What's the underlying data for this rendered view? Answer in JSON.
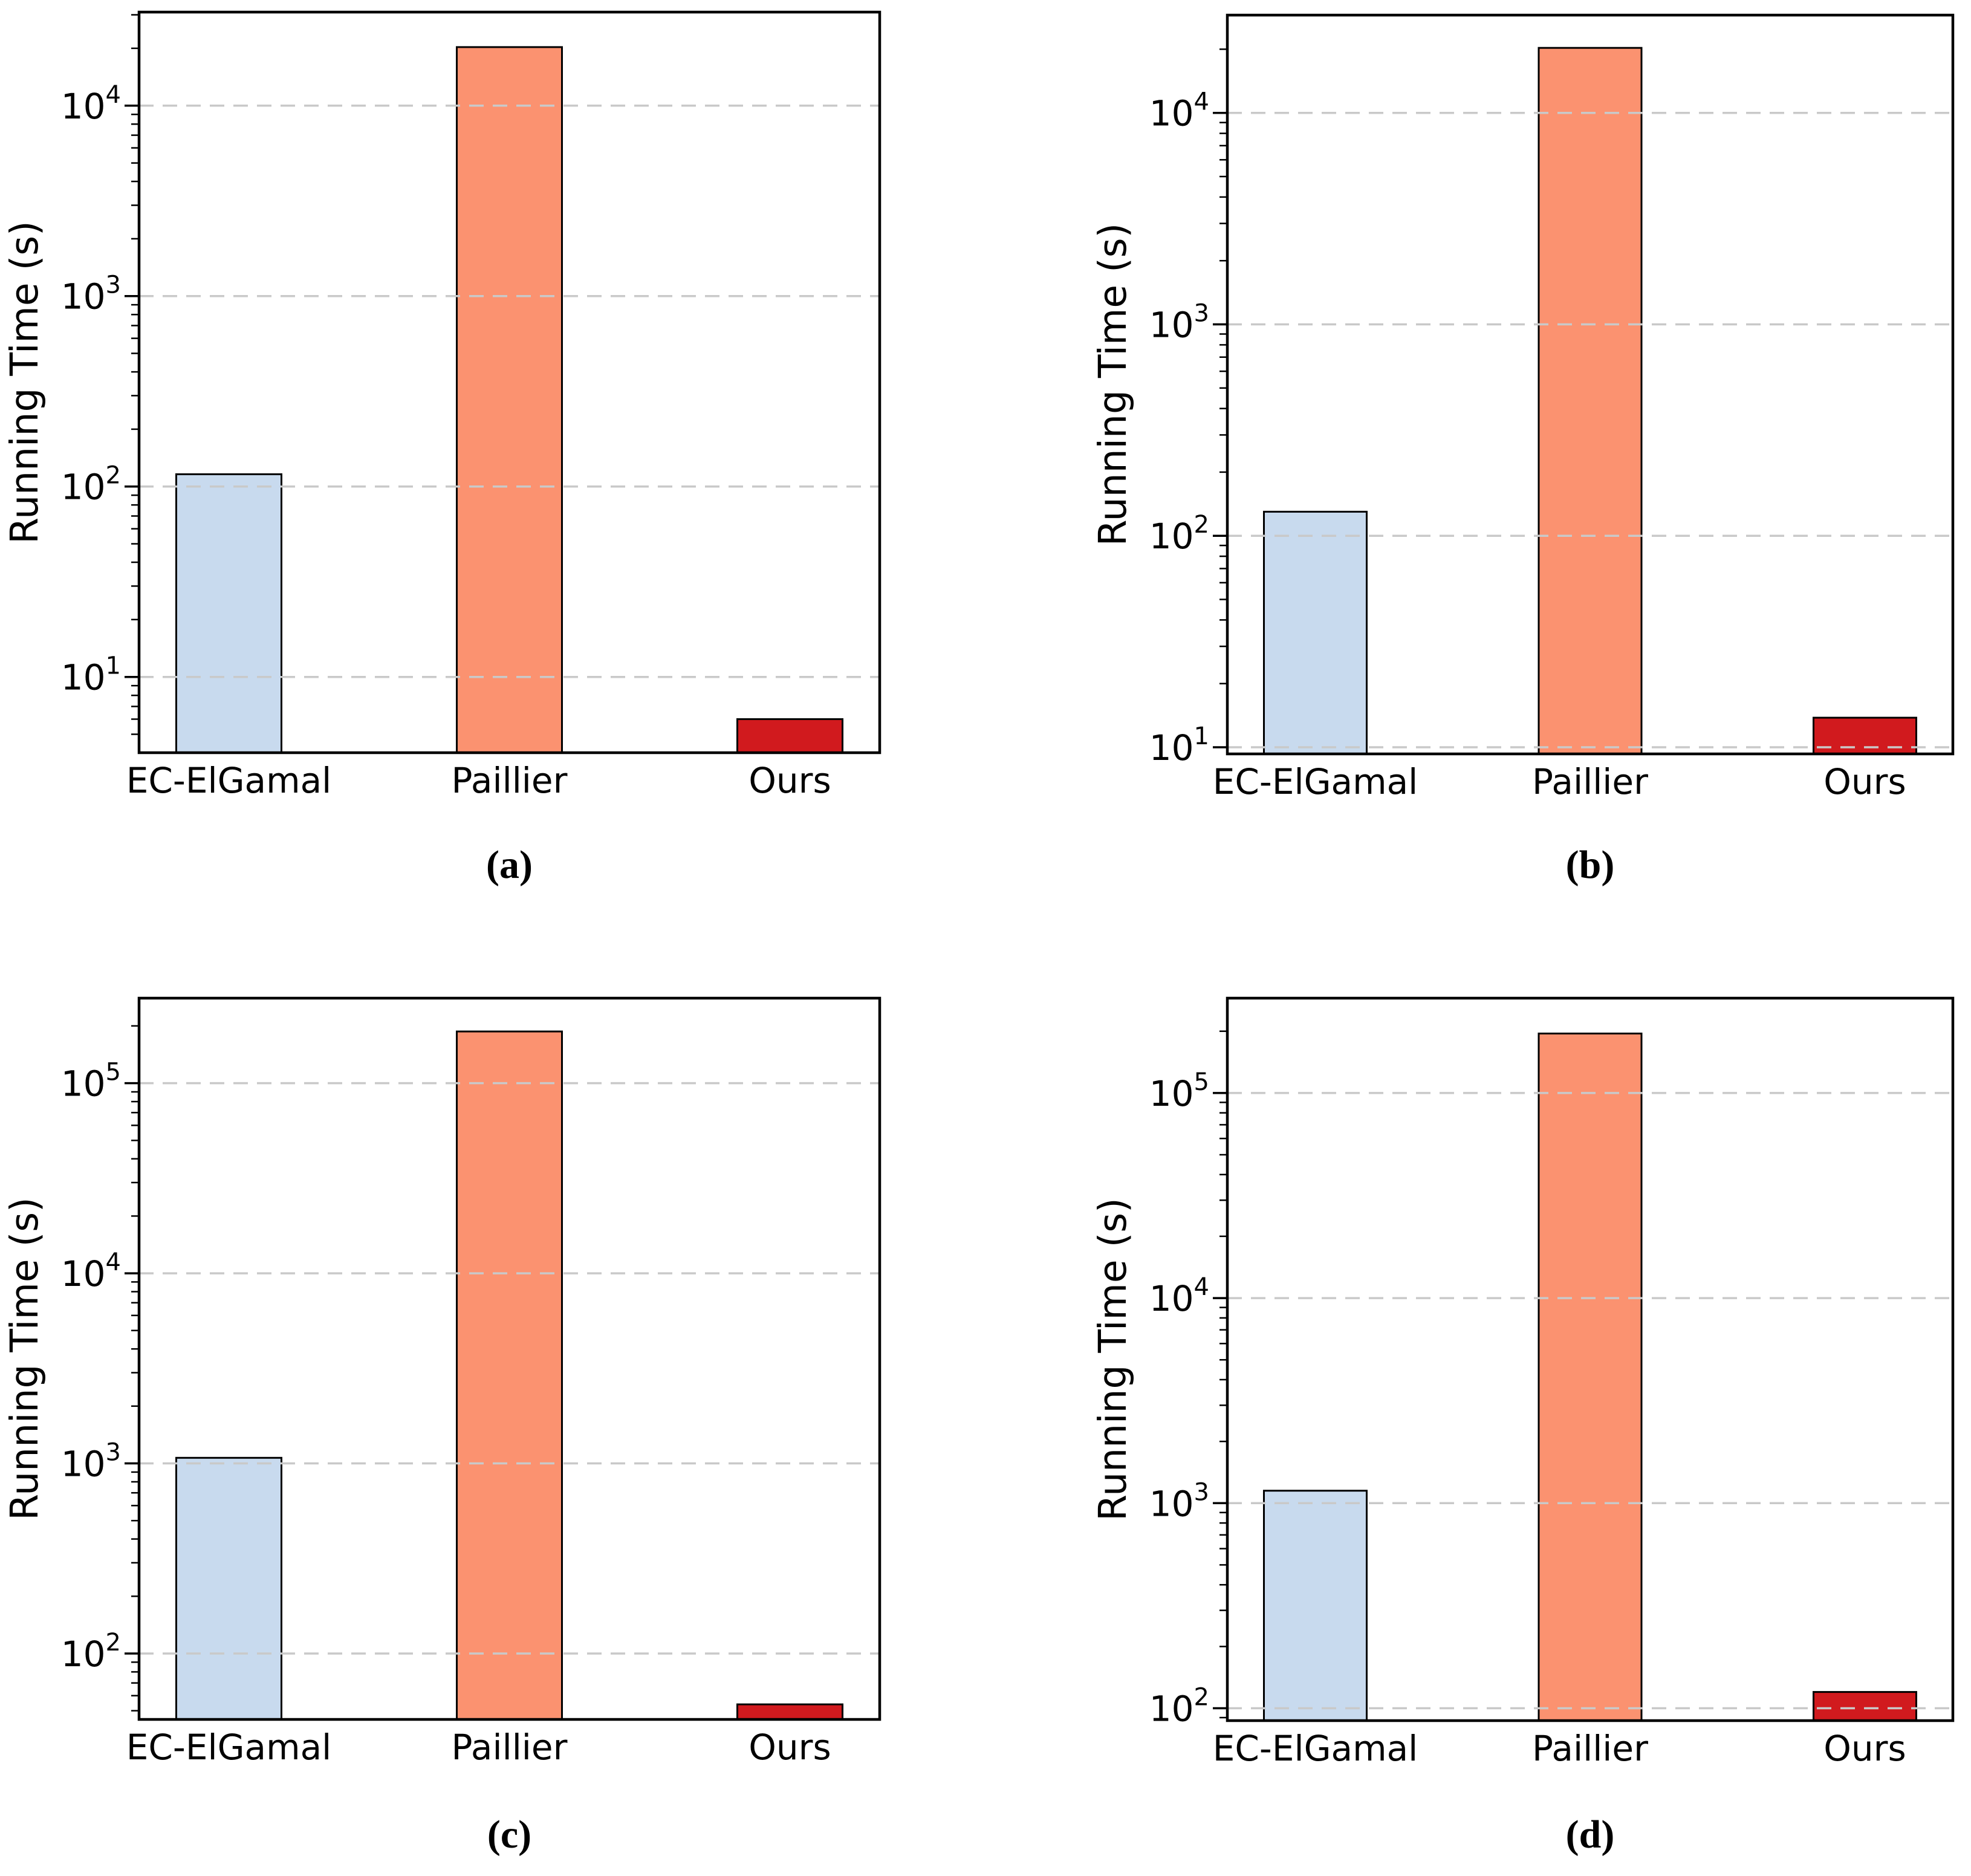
{
  "page": {
    "background": "#ffffff"
  },
  "chart_data": [
    {
      "type": "bar",
      "caption": "(a)",
      "ylabel": "Running Time (s)",
      "yscale": "log",
      "categories": [
        "EC-ElGamal",
        "Paillier",
        "Ours"
      ],
      "values": [
        116,
        20300,
        6
      ],
      "bar_colors": [
        "#c8daee",
        "#fb9270",
        "#d11a1e"
      ],
      "bar_edge_color": "#000000",
      "ylim": [
        4,
        31000
      ],
      "ytick_label_base": "10",
      "ytick_exponents": [
        1,
        2,
        3,
        4
      ],
      "grid": {
        "axis": "y",
        "style": "dashed",
        "color": "#c9c9c9"
      },
      "legend": "none"
    },
    {
      "type": "bar",
      "caption": "(b)",
      "ylabel": "Running Time (s)",
      "yscale": "log",
      "categories": [
        "EC-ElGamal",
        "Paillier",
        "Ours"
      ],
      "values": [
        130,
        20300,
        13.8
      ],
      "bar_colors": [
        "#c8daee",
        "#fb9270",
        "#d11a1e"
      ],
      "bar_edge_color": "#000000",
      "ylim": [
        9.3,
        29000
      ],
      "ytick_label_base": "10",
      "ytick_exponents": [
        1,
        2,
        3,
        4
      ],
      "grid": {
        "axis": "y",
        "style": "dashed",
        "color": "#c9c9c9"
      },
      "legend": "none"
    },
    {
      "type": "bar",
      "caption": "(c)",
      "ylabel": "Running Time (s)",
      "yscale": "log",
      "categories": [
        "EC-ElGamal",
        "Paillier",
        "Ours"
      ],
      "values": [
        1070,
        187000,
        54
      ],
      "bar_colors": [
        "#c8daee",
        "#fb9270",
        "#d11a1e"
      ],
      "bar_edge_color": "#000000",
      "ylim": [
        45,
        280000
      ],
      "ytick_label_base": "10",
      "ytick_exponents": [
        2,
        3,
        4,
        5
      ],
      "grid": {
        "axis": "y",
        "style": "dashed",
        "color": "#c9c9c9"
      },
      "legend": "none"
    },
    {
      "type": "bar",
      "caption": "(d)",
      "ylabel": "Running Time (s)",
      "yscale": "log",
      "categories": [
        "EC-ElGamal",
        "Paillier",
        "Ours"
      ],
      "values": [
        1150,
        195000,
        120
      ],
      "bar_colors": [
        "#c8daee",
        "#fb9270",
        "#d11a1e"
      ],
      "bar_edge_color": "#000000",
      "ylim": [
        87,
        290000
      ],
      "ytick_label_base": "10",
      "ytick_exponents": [
        2,
        3,
        4,
        5
      ],
      "grid": {
        "axis": "y",
        "style": "dashed",
        "color": "#c9c9c9"
      },
      "legend": "none"
    }
  ]
}
